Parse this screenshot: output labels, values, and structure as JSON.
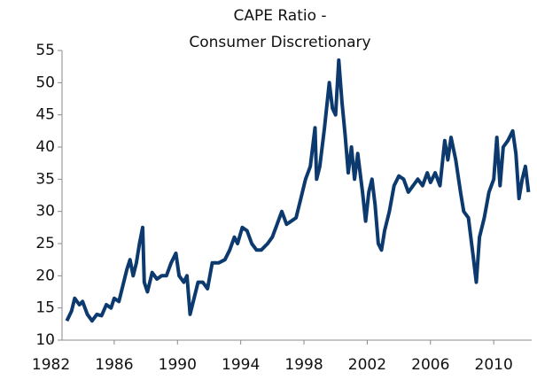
{
  "chart_data": {
    "type": "line",
    "title": [
      "CAPE Ratio -",
      "Consumer Discretionary"
    ],
    "x": [
      1983.0,
      1983.3,
      1983.5,
      1983.8,
      1984.0,
      1984.3,
      1984.6,
      1984.9,
      1985.2,
      1985.5,
      1985.8,
      1986.0,
      1986.3,
      1986.6,
      1986.8,
      1987.0,
      1987.2,
      1987.4,
      1987.6,
      1987.8,
      1987.9,
      1988.1,
      1988.4,
      1988.7,
      1989.0,
      1989.3,
      1989.6,
      1989.9,
      1990.1,
      1990.4,
      1990.6,
      1990.8,
      1991.0,
      1991.3,
      1991.6,
      1991.9,
      1992.2,
      1992.6,
      1993.0,
      1993.3,
      1993.6,
      1993.8,
      1994.1,
      1994.4,
      1994.7,
      1995.0,
      1995.3,
      1995.7,
      1996.0,
      1996.3,
      1996.6,
      1996.9,
      1997.2,
      1997.5,
      1997.8,
      1998.1,
      1998.4,
      1998.7,
      1998.8,
      1999.0,
      1999.3,
      1999.6,
      1999.8,
      2000.0,
      2000.2,
      2000.4,
      2000.6,
      2000.8,
      2001.0,
      2001.2,
      2001.4,
      2001.7,
      2001.9,
      2002.1,
      2002.3,
      2002.5,
      2002.7,
      2002.9,
      2003.1,
      2003.4,
      2003.7,
      2004.0,
      2004.3,
      2004.6,
      2004.9,
      2005.2,
      2005.5,
      2005.8,
      2006.0,
      2006.3,
      2006.6,
      2006.9,
      2007.1,
      2007.3,
      2007.6,
      2007.9,
      2008.1,
      2008.4,
      2008.7,
      2008.9,
      2009.1,
      2009.4,
      2009.7,
      2010.0,
      2010.2,
      2010.4,
      2010.6,
      2010.9,
      2011.2,
      2011.4,
      2011.6,
      2011.8,
      2012.0,
      2012.2
    ],
    "series": [
      {
        "color": "#0d3a6e",
        "values": [
          13,
          14.5,
          16.5,
          15.5,
          16,
          14,
          13,
          14,
          13.8,
          15.5,
          15,
          16.5,
          16,
          19,
          21,
          22.5,
          20,
          22,
          25,
          27.5,
          19,
          17.5,
          20.5,
          19.5,
          20,
          20,
          22,
          23.5,
          20,
          19,
          20,
          14,
          16,
          19,
          19,
          18,
          22,
          22,
          22.5,
          24,
          26,
          25,
          27.5,
          27,
          25,
          24,
          24,
          25,
          26,
          28,
          30,
          28,
          28.5,
          29,
          32,
          35,
          37,
          43,
          35,
          37,
          43,
          50,
          46,
          45,
          53.5,
          47,
          42,
          36,
          40,
          35,
          39,
          33,
          28.5,
          33,
          35,
          31,
          25,
          24,
          27,
          30,
          34,
          35.5,
          35,
          33,
          34,
          35,
          34,
          36,
          34.5,
          36,
          34,
          41,
          38,
          41.5,
          38,
          33,
          30,
          29,
          23,
          19,
          26,
          29,
          33,
          35,
          41.5,
          34,
          40,
          41,
          42.5,
          39,
          32,
          35,
          37,
          33
        ]
      }
    ],
    "xlim": [
      1982.7,
      2012.4
    ],
    "xticks": [
      1982,
      1986,
      1990,
      1994,
      1998,
      2002,
      2006,
      2010
    ],
    "ylim": [
      10,
      55
    ],
    "yticks": [
      10,
      15,
      20,
      25,
      30,
      35,
      40,
      45,
      50,
      55
    ]
  }
}
